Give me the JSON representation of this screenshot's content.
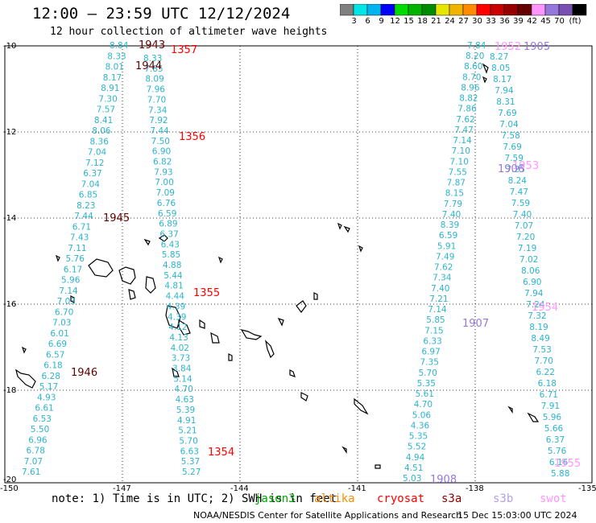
{
  "header": {
    "title": "12:00 – 23:59 UTC 12/12/2024",
    "subtitle": "12 hour collection of altimeter wave heights"
  },
  "colorbar": {
    "colors": [
      "#808080",
      "#00e6e6",
      "#00b4f0",
      "#0000ff",
      "#00dc00",
      "#00b400",
      "#008c00",
      "#e6e600",
      "#f0b400",
      "#ff8c00",
      "#ff0000",
      "#c80000",
      "#960000",
      "#640000",
      "#ff96ff",
      "#9678dc",
      "#7850b4",
      "#000000"
    ],
    "labels": [
      "3",
      "6",
      "9",
      "12",
      "15",
      "18",
      "21",
      "24",
      "27",
      "30",
      "33",
      "36",
      "39",
      "42",
      "45",
      "70",
      "(ft)"
    ]
  },
  "axes": {
    "y_labels": [
      "-10",
      "-12",
      "-14",
      "-16",
      "-18",
      "-20"
    ],
    "x_labels": [
      "-150",
      "-147",
      "-144",
      "-141",
      "-138",
      "-135"
    ]
  },
  "track1_values": [
    "8.84",
    "8.33",
    "8.01",
    "8.17",
    "8.91",
    "7.30",
    "7.57",
    "8.41",
    "8.06",
    "8.36",
    "7.04",
    "7.12",
    "6.37",
    "7.04",
    "6.85",
    "8.23",
    "7.44",
    "6.71",
    "7.43",
    "7.11",
    "5.76",
    "6.17",
    "5.96",
    "7.14",
    "7.03",
    "6.70",
    "7.03",
    "6.01",
    "6.69",
    "6.57",
    "6.18",
    "6.28",
    "5.17",
    "4.93",
    "6.61",
    "6.53",
    "5.50",
    "6.96",
    "6.78",
    "7.07",
    "7.61"
  ],
  "track2_values": [
    "8.33",
    "7.85",
    "8.09",
    "7.96",
    "7.70",
    "7.34",
    "7.92",
    "7.44",
    "7.50",
    "6.90",
    "6.82",
    "7.93",
    "7.00",
    "7.09",
    "6.76",
    "6.59",
    "6.89",
    "6.37",
    "6.43",
    "5.85",
    "4.88",
    "5.44",
    "4.81",
    "4.44",
    "4.39",
    "4.39",
    "4.12",
    "4.13",
    "4.02",
    "3.73",
    "3.84",
    "5.14",
    "4.70",
    "4.63",
    "5.39",
    "4.91",
    "5.21",
    "5.70",
    "6.63",
    "5.37",
    "5.27"
  ],
  "track3_values": [
    "7.84",
    "8.20",
    "8.60",
    "8.70",
    "8.96",
    "8.82",
    "7.86",
    "7.62",
    "7.47",
    "7.14",
    "7.10",
    "7.10",
    "7.55",
    "7.87",
    "8.15",
    "7.79",
    "7.40",
    "8.39",
    "6.59",
    "5.91",
    "7.49",
    "7.62",
    "7.34",
    "7.40",
    "7.21",
    "7.14",
    "5.85",
    "7.15",
    "6.33",
    "6.97",
    "7.35",
    "5.70",
    "5.35",
    "5.61",
    "4.70",
    "5.06",
    "4.36",
    "5.35",
    "5.52",
    "4.94",
    "4.51",
    "5.03"
  ],
  "track4_values": [
    "8.27",
    "8.05",
    "8.17",
    "7.94",
    "8.31",
    "7.69",
    "7.04",
    "7.58",
    "7.69",
    "7.59",
    "7.25",
    "8.24",
    "7.47",
    "7.59",
    "7.40",
    "7.07",
    "7.20",
    "7.19",
    "7.02",
    "8.06",
    "6.90",
    "7.94",
    "7.24",
    "7.32",
    "8.19",
    "8.49",
    "7.53",
    "7.70",
    "6.22",
    "6.18",
    "6.71",
    "7.91",
    "5.96",
    "5.66",
    "6.37",
    "5.76",
    "6.16",
    "5.88"
  ],
  "time_labels": [
    {
      "text": "1943",
      "color": "#640000"
    },
    {
      "text": "1357",
      "color": "#ff0000"
    },
    {
      "text": "1944",
      "color": "#640000"
    },
    {
      "text": "1356",
      "color": "#ff0000"
    },
    {
      "text": "1945",
      "color": "#640000"
    },
    {
      "text": "1355",
      "color": "#ff0000"
    },
    {
      "text": "1946",
      "color": "#640000"
    },
    {
      "text": "1354",
      "color": "#ff0000"
    },
    {
      "text": "1952",
      "color": "#ff96ff"
    },
    {
      "text": "1905",
      "color": "#9678dc"
    },
    {
      "text": "1953",
      "color": "#ff96ff"
    },
    {
      "text": "1906",
      "color": "#9678dc"
    },
    {
      "text": "1954",
      "color": "#ff96ff"
    },
    {
      "text": "1907",
      "color": "#9678dc"
    },
    {
      "text": "1908",
      "color": "#9678dc"
    },
    {
      "text": "1955",
      "color": "#ff96ff"
    }
  ],
  "footer": {
    "note": "note: 1) Time is in UTC; 2) SWH is in feet",
    "satellites": [
      {
        "name": "jason3",
        "color": "#00aa00"
      },
      {
        "name": "altika",
        "color": "#ff8c00"
      },
      {
        "name": "cryosat",
        "color": "#ff0000"
      },
      {
        "name": "s3a",
        "color": "#8b0000"
      },
      {
        "name": "s3b",
        "color": "#b4a0e6"
      },
      {
        "name": "swot",
        "color": "#ff96ff"
      }
    ],
    "credit": "NOAA/NESDIS Center for Satellite Applications and Research",
    "timestamp": "15 Dec 15:03:00 UTC 2024"
  }
}
